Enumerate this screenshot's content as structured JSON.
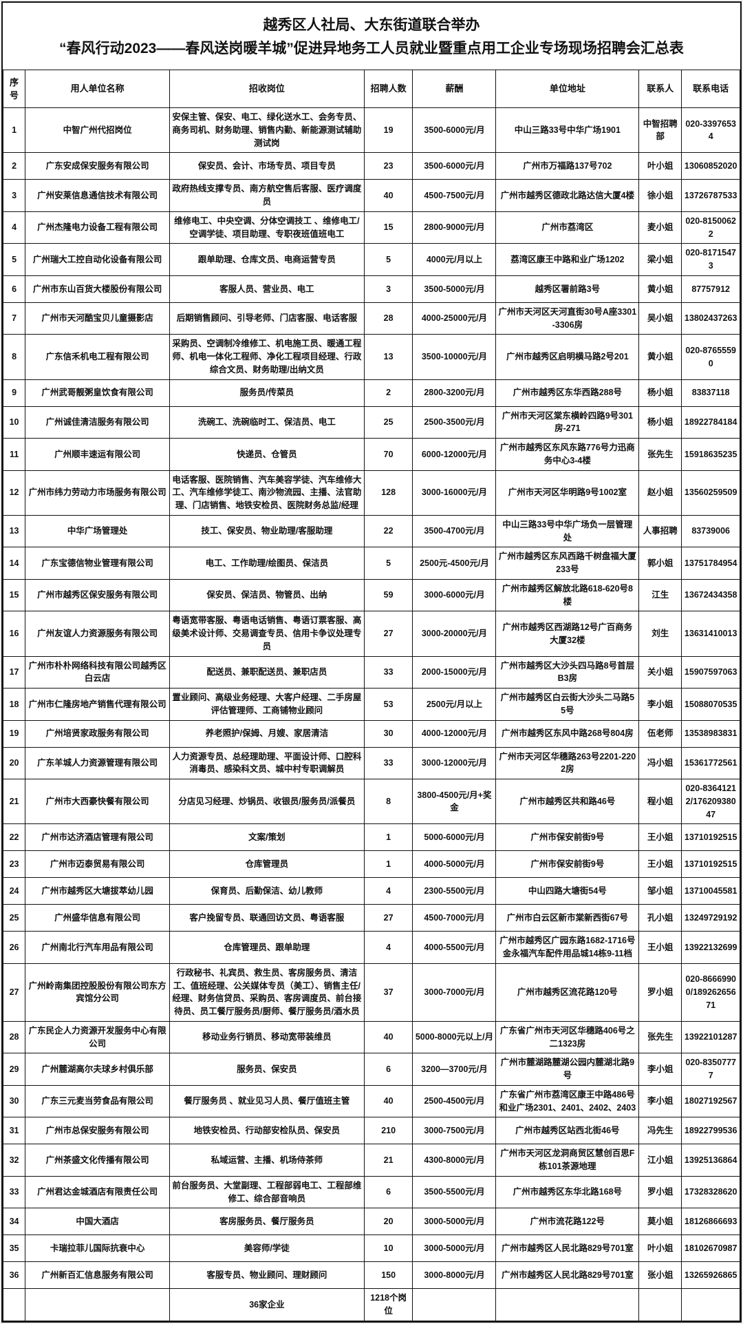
{
  "title": {
    "line1": "越秀区人社局、大东街道联合举办",
    "line2": "“春风行动2023——春风送岗暖羊城”促进异地务工人员就业暨重点用工企业专场现场招聘会汇总表"
  },
  "table": {
    "headers": [
      "序号",
      "用人单位名称",
      "招收岗位",
      "招聘人数",
      "薪酬",
      "单位地址",
      "联系人",
      "联系电话"
    ],
    "rows": [
      {
        "no": "1",
        "company": "中智广州代招岗位",
        "positions": "安保主管、保安、电工、绿化送水工、会务专员、商务司机、财务助理、销售内勤、新能源测试辅助测试岗",
        "count": "19",
        "salary": "3500-6000元/月",
        "address": "中山三路33号中华广场1901",
        "contact": "中智招聘部",
        "phone": "020-33976534"
      },
      {
        "no": "2",
        "company": "广东安成保安服务有限公司",
        "positions": "保安员、会计、市场专员、项目专员",
        "count": "23",
        "salary": "3500-6000元/月",
        "address": "广州市万福路137号702",
        "contact": "叶小姐",
        "phone": "13060852020"
      },
      {
        "no": "3",
        "company": "广州安莱信息通信技术有限公司",
        "positions": "政府热线支撑专员、南方航空售后客服、医疗调度员",
        "count": "40",
        "salary": "4500-7500元/月",
        "address": "广州市越秀区德政北路达信大厦4楼",
        "contact": "徐小姐",
        "phone": "13726787533"
      },
      {
        "no": "4",
        "company": "广州杰隆电力设备工程有限公司",
        "positions": "维修电工、中央空调、分体空调技工 、维修电工/空调学徒、项目助理、专职夜班值班电工",
        "count": "15",
        "salary": "2800-9000元/月",
        "address": "广州市荔湾区",
        "contact": "麦小姐",
        "phone": "020-81500622"
      },
      {
        "no": "5",
        "company": "广州瑞大工控自动化设备有限公司",
        "positions": "跟单助理、仓库文员、电商运营专员",
        "count": "5",
        "salary": "4000元/月以上",
        "address": "荔湾区康王中路和业广场1202",
        "contact": "梁小姐",
        "phone": "020-81715473"
      },
      {
        "no": "6",
        "company": "广州市东山百货大楼股份有限公司",
        "positions": "客服人员、营业员、电工",
        "count": "3",
        "salary": "3500-5000元/月",
        "address": "越秀区署前路3号",
        "contact": "黄小姐",
        "phone": "87757912"
      },
      {
        "no": "7",
        "company": "广州市天河酷宝贝儿童摄影店",
        "positions": "后期销售顾问、引导老师、门店客服、电话客服",
        "count": "28",
        "salary": "4000-25000元/月",
        "address": "广州市天河区天河直街30号A座3301-3306房",
        "contact": "吴小姐",
        "phone": "13802437263"
      },
      {
        "no": "8",
        "company": "广东信禾机电工程有限公司",
        "positions": "采购员、空调制冷维修工、机电施工员、暖通工程师、机电一体化工程师、净化工程项目经理、行政综合文员、财务助理/出纳文员",
        "count": "13",
        "salary": "3500-10000元/月",
        "address": "广州市越秀区启明横马路2号201",
        "contact": "黄小姐",
        "phone": "020-87655590"
      },
      {
        "no": "9",
        "company": "广州武哥靓粥皇饮食有限公司",
        "positions": "服务员/传菜员",
        "count": "2",
        "salary": "2800-3200元/月",
        "address": "广州市越秀区东华西路288号",
        "contact": "杨小姐",
        "phone": "83837118"
      },
      {
        "no": "10",
        "company": "广州诚佳清洁服务有限公司",
        "positions": "洗碗工、洗碗临时工、保洁员、电工",
        "count": "25",
        "salary": "2500-3500元/月",
        "address": "广州市天河区棠东横岭四路9号301房-271",
        "contact": "杨小姐",
        "phone": "18922784184"
      },
      {
        "no": "11",
        "company": "广州顺丰速运有限公司",
        "positions": "快递员、仓管员",
        "count": "70",
        "salary": "6000-12000元/月",
        "address": "广州市越秀区东风东路776号力迅商务中心3-4楼",
        "contact": "张先生",
        "phone": "15918635235"
      },
      {
        "no": "12",
        "company": "广州市纬力劳动力市场服务有限公司",
        "positions": "电话客服、医院销售、汽车美容学徒、汽车维修大工、汽车维修学徒工、南沙物流园、主播、法官助理、门店销售、地铁安检员、医院财务总监/经理",
        "count": "128",
        "salary": "3000-16000元/月",
        "address": "广州市天河区华明路9号1002室",
        "contact": "赵小姐",
        "phone": "13560259509"
      },
      {
        "no": "13",
        "company": "中华广场管理处",
        "positions": "技工、保安员、物业助理/客服助理",
        "count": "22",
        "salary": "3500-4700元/月",
        "address": "中山三路33号中华广场负一层管理处",
        "contact": "人事招聘",
        "phone": "83739006"
      },
      {
        "no": "14",
        "company": "广东宝德信物业管理有限公司",
        "positions": "电工、工作助理/绘图员、保洁员",
        "count": "5",
        "salary": "2500元-4500元/月",
        "address": "广州市越秀区东风西路千树盘福大厦233号",
        "contact": "郭小姐",
        "phone": "13751784954"
      },
      {
        "no": "15",
        "company": "广州市越秀区保安服务有限公司",
        "positions": "保安员、保洁员、物管员、出纳",
        "count": "59",
        "salary": "3000-6000元/月",
        "address": "广州市越秀区解放北路618-620号8楼",
        "contact": "江生",
        "phone": "13672434358"
      },
      {
        "no": "16",
        "company": "广州友谊人力资源服务有限公司",
        "positions": "粤语宽带客服、粤语电话销售、粤语订票客服、高级美术设计师、交易调查专员、信用卡争议处理专员",
        "count": "27",
        "salary": "3000-20000元/月",
        "address": "广州市越秀区西湖路12号广百商务大厦32楼",
        "contact": "刘生",
        "phone": "13631410013"
      },
      {
        "no": "17",
        "company": "广州市朴朴网络科技有限公司越秀区白云店",
        "positions": "配送员、兼职配送员、兼职店员",
        "count": "33",
        "salary": "2000-15000元/月",
        "address": "广州市越秀区大沙头四马路8号首层B3房",
        "contact": "关小姐",
        "phone": "15907597063"
      },
      {
        "no": "18",
        "company": "广州市仁隆房地产销售代理有限公司",
        "positions": "置业顾问、高级业务经理、大客户经理、二手房屋评估管理师、工商铺物业顾问",
        "count": "53",
        "salary": "2500元/月以上",
        "address": "广州市越秀区白云街大沙头二马路55号",
        "contact": "李小姐",
        "phone": "15088070535"
      },
      {
        "no": "19",
        "company": "广州培贤家政服务有限公司",
        "positions": "养老照护/保姆、月嫂、家居清洁",
        "count": "30",
        "salary": "4000-12000元/月",
        "address": "广州市越秀区东风中路268号804房",
        "contact": "伍老师",
        "phone": "13538983831"
      },
      {
        "no": "20",
        "company": "广东羊城人力资源管理有限公司",
        "positions": "人力资源专员、总经理助理、平面设计师、口腔科消毒员、感染科文员、城中村专职调解员",
        "count": "33",
        "salary": "3000-12000元/月",
        "address": "广州市天河区华穗路263号2201-2202房",
        "contact": "冯小姐",
        "phone": "15361772561"
      },
      {
        "no": "21",
        "company": "广州市大西豪快餐有限公司",
        "positions": "分店见习经理、炒锅员、收银员/服务员/派餐员",
        "count": "8",
        "salary": "3800-4500元/月+奖金",
        "address": "广州市越秀区共和路46号",
        "contact": "程小姐",
        "phone": "020-83641212/17620938047"
      },
      {
        "no": "22",
        "company": "广州市达济酒店管理有限公司",
        "positions": "文案/策划",
        "count": "1",
        "salary": "5000-6000元/月",
        "address": "广州市保安前街9号",
        "contact": "王小姐",
        "phone": "13710192515"
      },
      {
        "no": "23",
        "company": "广州市迈泰贸易有限公司",
        "positions": "仓库管理员",
        "count": "1",
        "salary": "4000-5000元/月",
        "address": "广州市保安前街9号",
        "contact": "王小姐",
        "phone": "13710192515"
      },
      {
        "no": "24",
        "company": "广州市越秀区大塘拔萃幼儿园",
        "positions": "保育员、后勤保洁、幼儿教师",
        "count": "4",
        "salary": "2300-5500元/月",
        "address": "中山四路大塘街54号",
        "contact": "邹小姐",
        "phone": "13710045581"
      },
      {
        "no": "25",
        "company": "广州盛华信息有限公司",
        "positions": "客户挽留专员、联通回访文员、粤语客服",
        "count": "27",
        "salary": "4500-7000元/月",
        "address": "广州市白云区新市棠新西街67号",
        "contact": "孔小姐",
        "phone": "13249729192"
      },
      {
        "no": "26",
        "company": "广州南北行汽车用品有限公司",
        "positions": "仓库管理员、跟单助理",
        "count": "4",
        "salary": "4000-5500元/月",
        "address": "广州市越秀区广园东路1682-1716号金永福汽车配件用品城14栋9-11档",
        "contact": "王小姐",
        "phone": "13922132699"
      },
      {
        "no": "27",
        "company": "广州岭南集团控股股份有限公司东方宾馆分公司",
        "positions": "行政秘书、礼宾员、救生员、客房服务员、清洁工、值班经理、公关媒体专员（美工）、销售主任/经理、财务信贷员、采购员、客房调度员、前台接待员、员工餐厅服务员/厨师、餐厅服务员/酒水员",
        "count": "37",
        "salary": "3000-7000元/月",
        "address": "广州市越秀区流花路120号",
        "contact": "罗小姐",
        "phone": "020-86669900/18926265671"
      },
      {
        "no": "28",
        "company": "广东民企人力资源开发服务中心有限公司",
        "positions": "移动业务行销员、移动宽带装维员",
        "count": "40",
        "salary": "5000-8000元以上/月",
        "address": "广东省广州市天河区华穗路406号之二1323房",
        "contact": "张先生",
        "phone": "13922101287"
      },
      {
        "no": "29",
        "company": "广州麓湖高尔夫球乡村俱乐部",
        "positions": "服务员、保安员",
        "count": "6",
        "salary": "3200—3700元/月",
        "address": "广州市麓湖路麓湖公园内麓湖北路9号",
        "contact": "李小姐",
        "phone": "020-83507777"
      },
      {
        "no": "30",
        "company": "广东三元麦当劳食品有限公司",
        "positions": "餐厅服务员 、就业见习人员、餐厅值班主管",
        "count": "40",
        "salary": "2500-4500元/月",
        "address": "广东省广州市荔湾区康王中路486号和业广场2301、2401、2402、2403",
        "contact": "李小姐",
        "phone": "18027192567"
      },
      {
        "no": "31",
        "company": "广州市总保安服务有限公司",
        "positions": "地铁安检员、行动部安检队员、保安员",
        "count": "210",
        "salary": "3000-7500元/月",
        "address": "广州市越秀区站西北街46号",
        "contact": "冯先生",
        "phone": "18922799536"
      },
      {
        "no": "32",
        "company": "广州茶盛文化传播有限公司",
        "positions": "私域运营、主播、机场侍茶师",
        "count": "21",
        "salary": "4300-8000元/月",
        "address": "广州市天河区龙洞商贸区慧创百思F栋101茶源地理",
        "contact": "江小姐",
        "phone": "13925136864"
      },
      {
        "no": "33",
        "company": "广州君达金城酒店有限责任公司",
        "positions": "前台服务员、大堂副理、工程部弱电工、工程部维修工、综合部音响员",
        "count": "6",
        "salary": "3500-5500元/月",
        "address": "广州市越秀区东华北路168号",
        "contact": "罗小姐",
        "phone": "17328328620"
      },
      {
        "no": "34",
        "company": "中国大酒店",
        "positions": "客房服务员、餐厅服务员",
        "count": "20",
        "salary": "3000-5000元/月",
        "address": "广州市流花路122号",
        "contact": "莫小姐",
        "phone": "18126866693"
      },
      {
        "no": "35",
        "company": "卡瑞拉菲儿国际抗衰中心",
        "positions": "美容师/学徒",
        "count": "10",
        "salary": "3000-5000元/月",
        "address": "广州市越秀区人民北路829号701室",
        "contact": "叶小姐",
        "phone": "18102670987"
      },
      {
        "no": "36",
        "company": "广州新百汇信息服务有限公司",
        "positions": "客服专员、物业顾问、理财顾问",
        "count": "150",
        "salary": "3000-8000元/月",
        "address": "广州市越秀区人民北路829号701室",
        "contact": "张小姐",
        "phone": "13265926865"
      }
    ],
    "footer": {
      "companies_total": "36家企业",
      "positions_total": "1218个岗位"
    }
  }
}
